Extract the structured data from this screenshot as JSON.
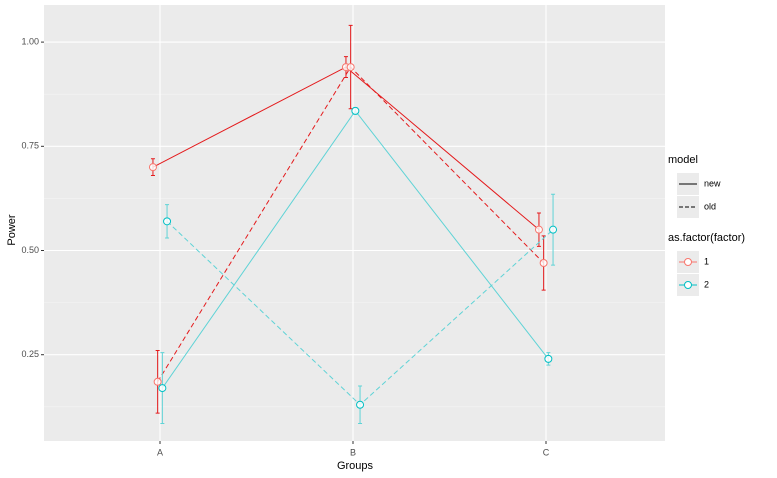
{
  "chart_data": {
    "type": "line",
    "x_label": "Groups",
    "y_label": "Power",
    "categories": [
      "A",
      "B",
      "C"
    ],
    "ylim": [
      0.043,
      1.089
    ],
    "yticks": [
      {
        "value": 0.25,
        "label": "0.25"
      },
      {
        "value": 0.5,
        "label": "0.50"
      },
      {
        "value": 0.75,
        "label": "0.75"
      },
      {
        "value": 1,
        "label": "1.00"
      }
    ],
    "grid": true,
    "legends": [
      {
        "title": "model",
        "entries": [
          {
            "label": "new",
            "dash": false
          },
          {
            "label": "old",
            "dash": true
          }
        ]
      },
      {
        "title": "as.factor(factor)",
        "entries": [
          {
            "label": "1",
            "color": "#f8766d"
          },
          {
            "label": "2",
            "color": "#00bfc4"
          }
        ]
      }
    ],
    "series": [
      {
        "model": 0,
        "factor": 0,
        "color": "#e41a1c",
        "values": [
          0.7,
          0.94,
          0.55
        ],
        "errors": [
          0.02,
          0.025,
          0.04
        ]
      },
      {
        "model": 1,
        "factor": 0,
        "color": "#e41a1c",
        "values": [
          0.185,
          0.94,
          0.47
        ],
        "errors": [
          0.075,
          0.1,
          0.065
        ]
      },
      {
        "model": 0,
        "factor": 1,
        "color": "#5fd3d6",
        "values": [
          0.17,
          0.835,
          0.24
        ],
        "errors": [
          0.085,
          0.008,
          0.015
        ]
      },
      {
        "model": 1,
        "factor": 1,
        "color": "#5fd3d6",
        "values": [
          0.57,
          0.13,
          0.55
        ],
        "errors": [
          0.04,
          0.045,
          0.085
        ]
      }
    ]
  }
}
